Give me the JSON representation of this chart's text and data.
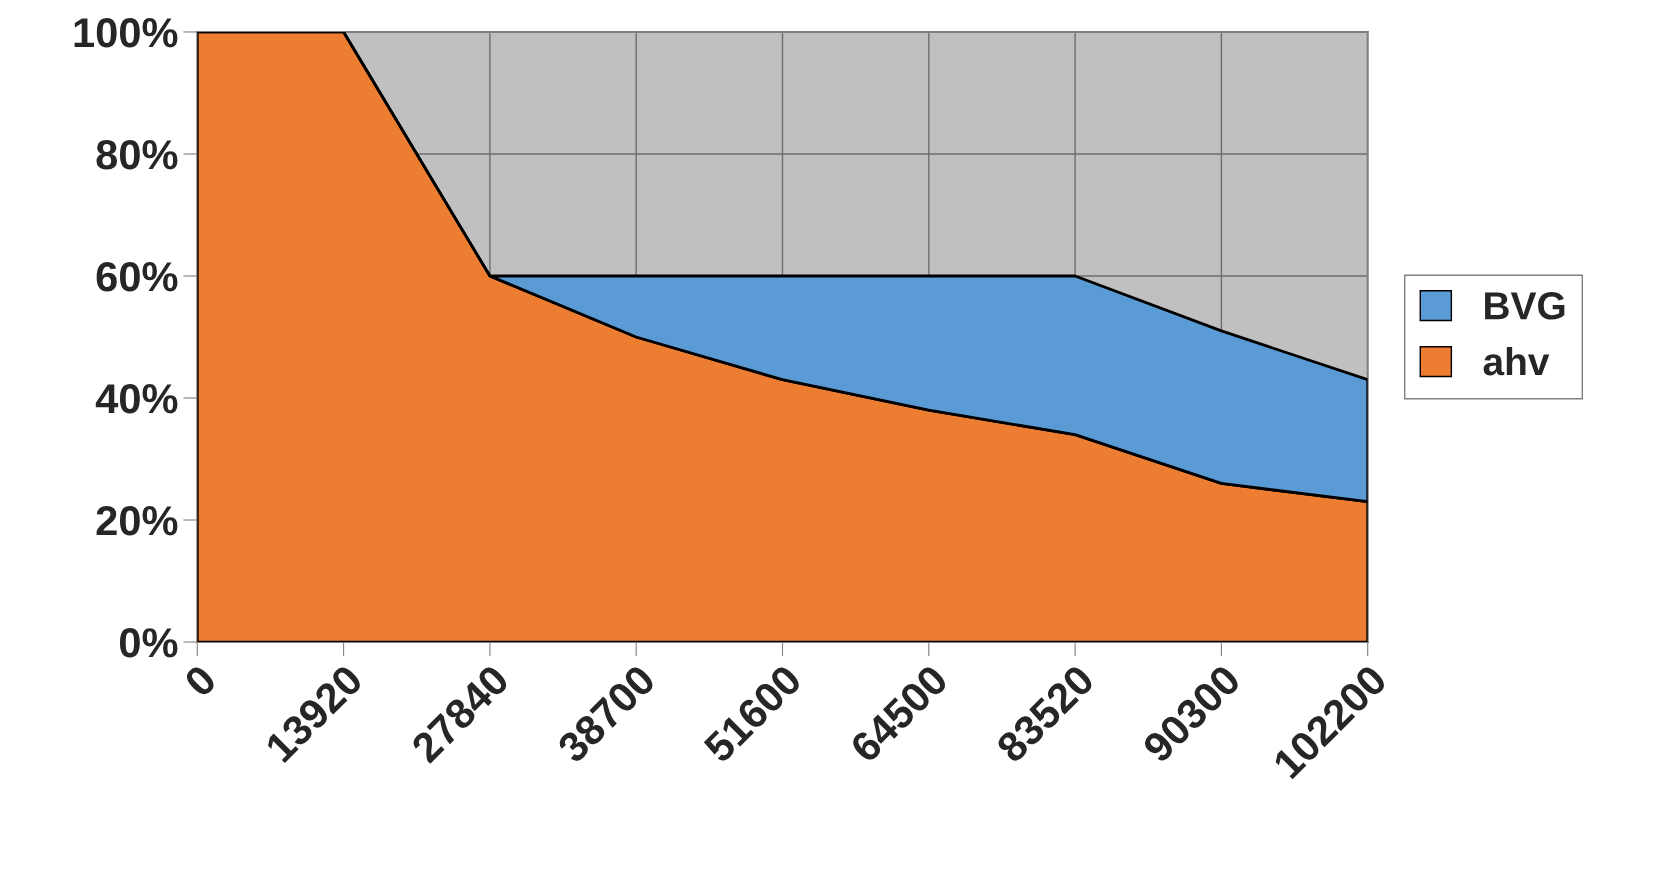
{
  "chart_data": {
    "type": "area",
    "stacked": true,
    "categories": [
      "0",
      "13920",
      "27840",
      "38700",
      "51600",
      "64500",
      "83520",
      "90300",
      "102200"
    ],
    "series": [
      {
        "name": "ahv",
        "color": "#ed7d31",
        "values": [
          100,
          100,
          60,
          50,
          43,
          38,
          34,
          26,
          23
        ]
      },
      {
        "name": "BVG",
        "color": "#5b9bd5",
        "values": [
          0,
          0,
          0,
          10,
          17,
          22,
          26,
          25,
          20
        ]
      }
    ],
    "ylim": [
      0,
      100
    ],
    "yticks": [
      {
        "value": 0,
        "label": "0%"
      },
      {
        "value": 20,
        "label": "20%"
      },
      {
        "value": 40,
        "label": "40%"
      },
      {
        "value": 60,
        "label": "60%"
      },
      {
        "value": 80,
        "label": "80%"
      },
      {
        "value": 100,
        "label": "100%"
      }
    ],
    "grid": true,
    "legend": "right"
  }
}
